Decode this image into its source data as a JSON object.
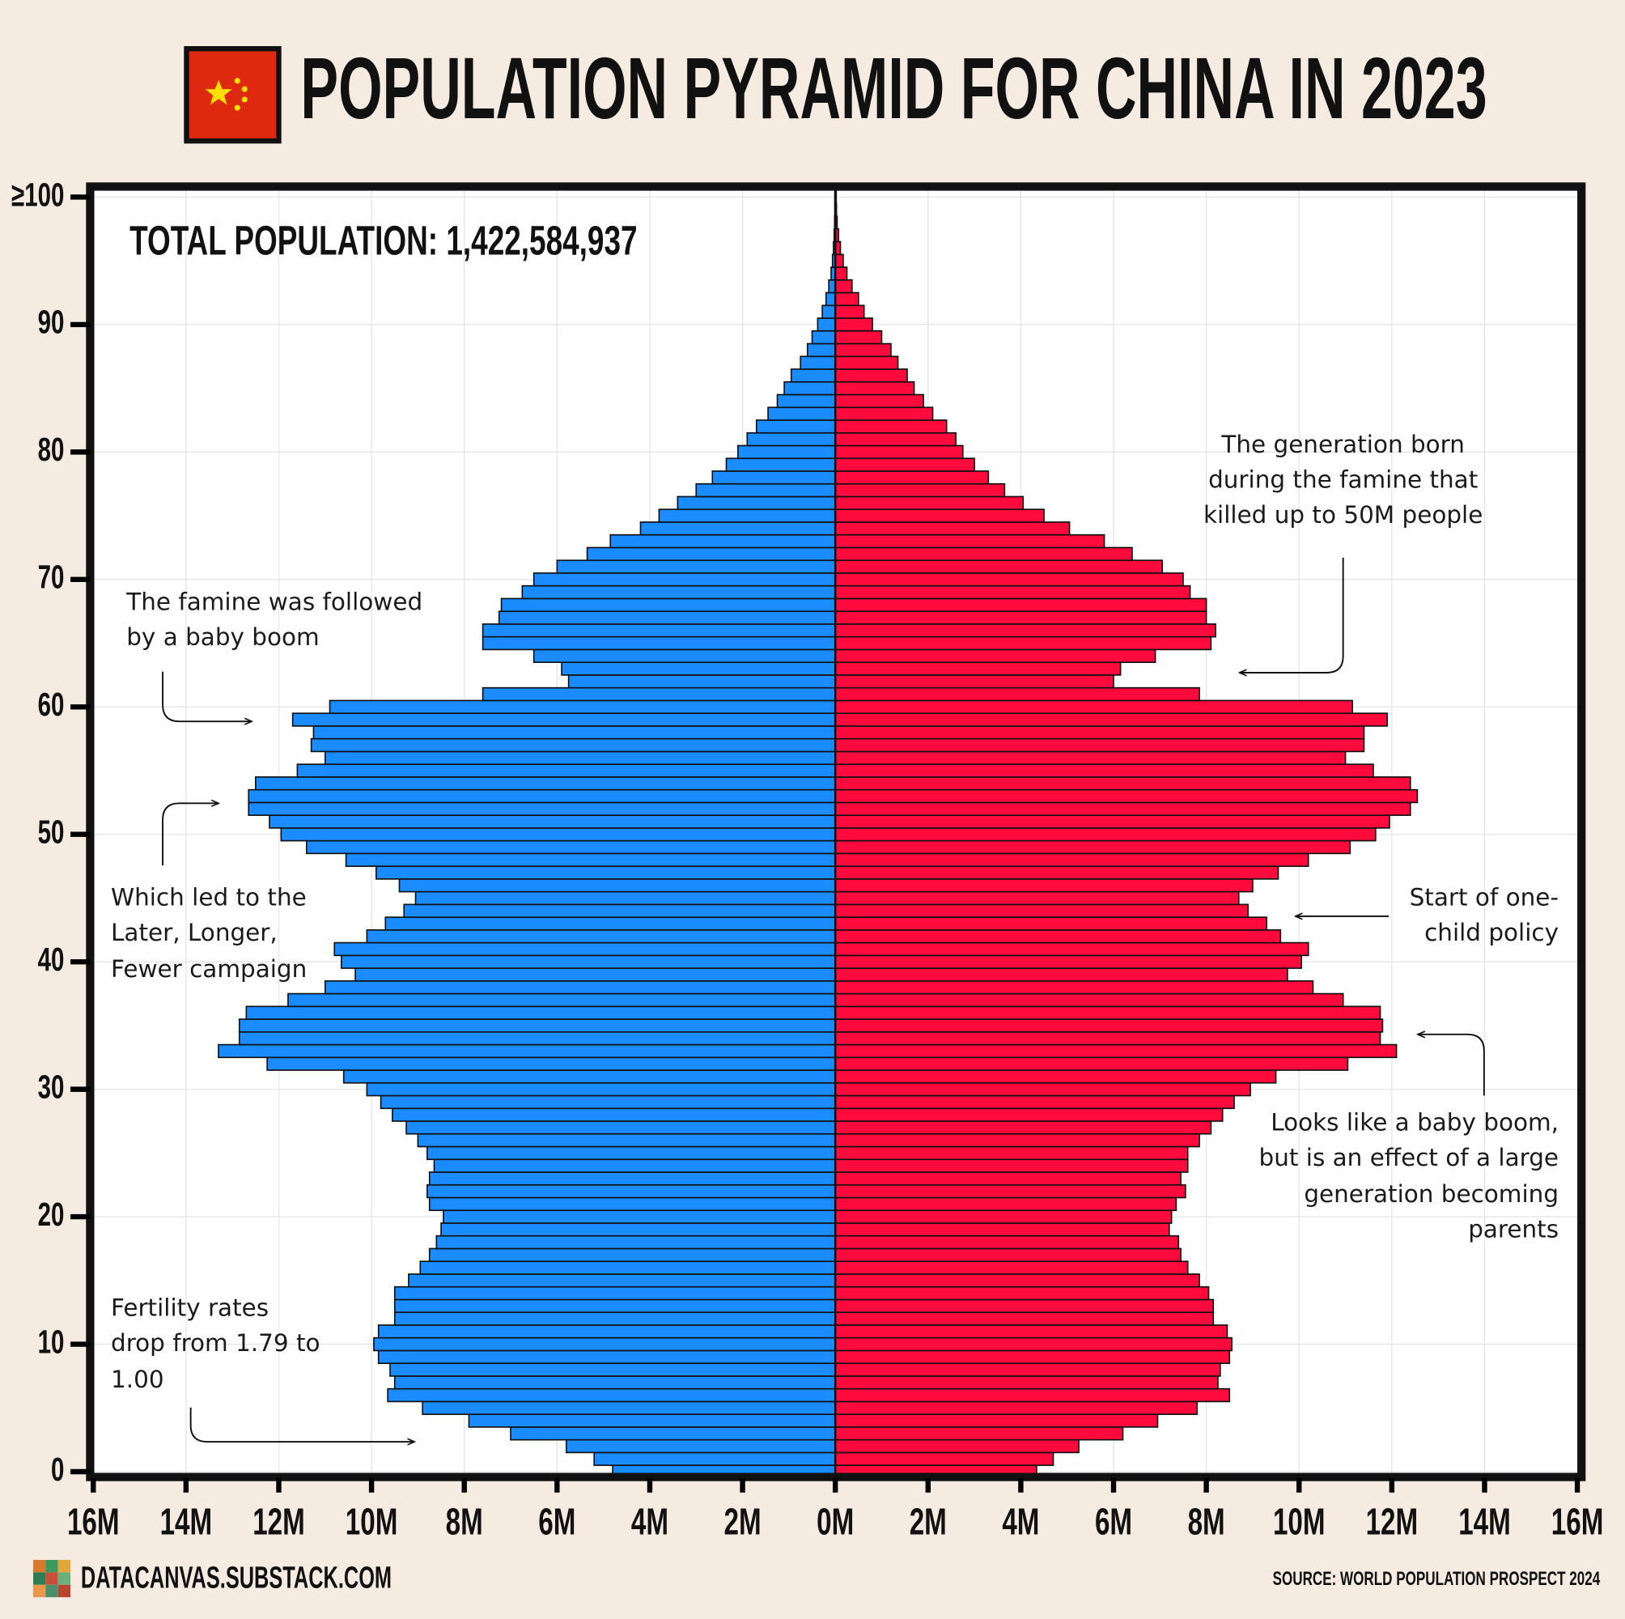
{
  "chart_data": {
    "type": "pyramid",
    "title": "POPULATION PYRAMID FOR CHINA IN 2023",
    "subtitle": "TOTAL POPULATION: 1,422,584,937",
    "y": [
      0,
      1,
      2,
      3,
      4,
      5,
      6,
      7,
      8,
      9,
      10,
      11,
      12,
      13,
      14,
      15,
      16,
      17,
      18,
      19,
      20,
      21,
      22,
      23,
      24,
      25,
      26,
      27,
      28,
      29,
      30,
      31,
      32,
      33,
      34,
      35,
      36,
      37,
      38,
      39,
      40,
      41,
      42,
      43,
      44,
      45,
      46,
      47,
      48,
      49,
      50,
      51,
      52,
      53,
      54,
      55,
      56,
      57,
      58,
      59,
      60,
      61,
      62,
      63,
      64,
      65,
      66,
      67,
      68,
      69,
      70,
      71,
      72,
      73,
      74,
      75,
      76,
      77,
      78,
      79,
      80,
      81,
      82,
      83,
      84,
      85,
      86,
      87,
      88,
      89,
      90,
      91,
      92,
      93,
      94,
      95,
      96,
      97,
      98,
      99,
      100
    ],
    "series": [
      {
        "color": "#1a8cff",
        "side": "left",
        "values": [
          4.8,
          5.2,
          5.8,
          7.0,
          7.9,
          8.9,
          9.65,
          9.5,
          9.6,
          9.85,
          9.95,
          9.85,
          9.5,
          9.5,
          9.5,
          9.2,
          8.95,
          8.75,
          8.6,
          8.5,
          8.45,
          8.75,
          8.8,
          8.75,
          8.65,
          8.8,
          9.0,
          9.25,
          9.55,
          9.8,
          10.1,
          10.6,
          12.25,
          13.3,
          12.85,
          12.85,
          12.7,
          11.8,
          11.0,
          10.35,
          10.65,
          10.8,
          10.1,
          9.7,
          9.3,
          9.05,
          9.4,
          9.9,
          10.55,
          11.4,
          11.95,
          12.2,
          12.65,
          12.65,
          12.5,
          11.6,
          11.0,
          11.3,
          11.25,
          11.7,
          10.9,
          7.6,
          5.75,
          5.9,
          6.5,
          7.6,
          7.6,
          7.25,
          7.2,
          6.75,
          6.5,
          6.0,
          5.35,
          4.85,
          4.2,
          3.8,
          3.4,
          3.0,
          2.65,
          2.35,
          2.1,
          1.9,
          1.7,
          1.45,
          1.25,
          1.1,
          0.95,
          0.75,
          0.6,
          0.5,
          0.38,
          0.28,
          0.2,
          0.14,
          0.09,
          0.06,
          0.04,
          0.025,
          0.015,
          0.01,
          0.01
        ]
      },
      {
        "color": "#ff0a3c",
        "side": "right",
        "values": [
          4.34,
          4.7,
          5.25,
          6.2,
          6.95,
          7.8,
          8.5,
          8.25,
          8.3,
          8.5,
          8.55,
          8.45,
          8.15,
          8.15,
          8.05,
          7.85,
          7.6,
          7.45,
          7.4,
          7.2,
          7.25,
          7.35,
          7.55,
          7.45,
          7.6,
          7.6,
          7.85,
          8.1,
          8.35,
          8.6,
          8.95,
          9.5,
          11.05,
          12.1,
          11.75,
          11.8,
          11.75,
          10.95,
          10.3,
          9.75,
          10.05,
          10.2,
          9.6,
          9.3,
          8.9,
          8.7,
          9.0,
          9.55,
          10.2,
          11.1,
          11.65,
          11.95,
          12.4,
          12.55,
          12.4,
          11.6,
          11.0,
          11.4,
          11.4,
          11.9,
          11.15,
          7.85,
          6.0,
          6.15,
          6.9,
          8.1,
          8.2,
          8.0,
          8.0,
          7.65,
          7.5,
          7.05,
          6.4,
          5.8,
          5.05,
          4.5,
          4.05,
          3.65,
          3.3,
          3.0,
          2.75,
          2.6,
          2.4,
          2.1,
          1.9,
          1.7,
          1.55,
          1.35,
          1.2,
          1.0,
          0.8,
          0.62,
          0.5,
          0.36,
          0.25,
          0.17,
          0.11,
          0.07,
          0.04,
          0.025,
          0.02
        ]
      }
    ],
    "xlim": [
      -16,
      16
    ],
    "xticks": [
      {
        "value": -16,
        "label": "16M"
      },
      {
        "value": -14,
        "label": "14M"
      },
      {
        "value": -12,
        "label": "12M"
      },
      {
        "value": -10,
        "label": "10M"
      },
      {
        "value": -8,
        "label": "8M"
      },
      {
        "value": -6,
        "label": "6M"
      },
      {
        "value": -4,
        "label": "4M"
      },
      {
        "value": -2,
        "label": "2M"
      },
      {
        "value": 0,
        "label": "0M"
      },
      {
        "value": 2,
        "label": "2M"
      },
      {
        "value": 4,
        "label": "4M"
      },
      {
        "value": 6,
        "label": "6M"
      },
      {
        "value": 8,
        "label": "8M"
      },
      {
        "value": 10,
        "label": "10M"
      },
      {
        "value": 12,
        "label": "12M"
      },
      {
        "value": 14,
        "label": "14M"
      },
      {
        "value": 16,
        "label": "16M"
      }
    ],
    "ylim": [
      -0.5,
      100.5
    ],
    "yticks": [
      0,
      10,
      20,
      30,
      40,
      50,
      60,
      70,
      80,
      90,
      {
        "value": 100,
        "label": "≥100"
      }
    ],
    "grid": true,
    "annotations": [
      {
        "lines": [
          "The generation born",
          "during the famine that",
          "killed up to 50M people"
        ]
      },
      {
        "lines": [
          "The famine was followed",
          "by a baby boom"
        ]
      },
      {
        "lines": [
          "Which led to the",
          "Later, Longer,",
          "Fewer campaign"
        ]
      },
      {
        "lines": [
          "Start of one-",
          "child policy"
        ]
      },
      {
        "lines": [
          "Looks like a baby boom,",
          "but is an effect of a large",
          "generation becoming",
          "parents"
        ]
      },
      {
        "lines": [
          "Fertility rates",
          "drop from 1.79 to",
          "1.00"
        ]
      }
    ],
    "footer": {
      "site": "DATACANVAS.SUBSTACK.COM",
      "source": "SOURCE: WORLD POPULATION PROSPECT 2024"
    }
  }
}
